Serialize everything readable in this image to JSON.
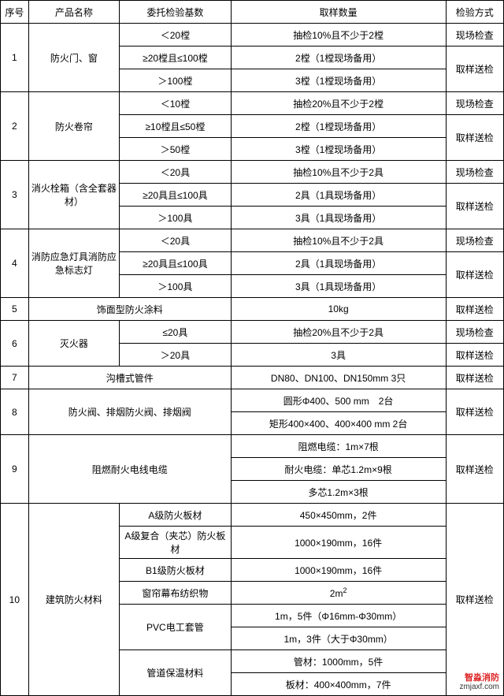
{
  "header": {
    "seq": "序号",
    "name": "产品名称",
    "base": "委托检验基数",
    "qty": "取样数量",
    "method": "检验方式"
  },
  "rows": {
    "r1": {
      "seq": "1",
      "name": "防火门、窗",
      "b1": "＜20樘",
      "q1": "抽检10%且不少于2樘",
      "m1": "现场检查",
      "b2": "≥20樘且≤100樘",
      "q2": "2樘（1樘现场备用）",
      "m23": "取样送检",
      "b3": "＞100樘",
      "q3": "3樘（1樘现场备用）"
    },
    "r2": {
      "seq": "2",
      "name": "防火卷帘",
      "b1": "＜10樘",
      "q1": "抽检20%且不少于2樘",
      "m1": "现场检查",
      "b2": "≥10樘且≤50樘",
      "q2": "2樘（1樘现场备用）",
      "m23": "取样送检",
      "b3": "＞50樘",
      "q3": "3樘（1樘现场备用）"
    },
    "r3": {
      "seq": "3",
      "name": "消火栓箱（含全套器材）",
      "b1": "＜20具",
      "q1": "抽检10%且不少于2具",
      "m1": "现场检查",
      "b2": "≥20具且≤100具",
      "q2": "2具（1具现场备用）",
      "m23": "取样送检",
      "b3": "＞100具",
      "q3": "3具（1具现场备用）"
    },
    "r4": {
      "seq": "4",
      "name": "消防应急灯具消防应急标志灯",
      "b1": "＜20具",
      "q1": "抽检10%且不少于2具",
      "m1": "现场检查",
      "b2": "≥20具且≤100具",
      "q2": "2具（1具现场备用）",
      "m23": "取样送检",
      "b3": "＞100具",
      "q3": "3具（1具现场备用）"
    },
    "r5": {
      "seq": "5",
      "name": "饰面型防火涂料",
      "qty": "10kg",
      "m": "取样送检"
    },
    "r6": {
      "seq": "6",
      "name": "灭火器",
      "b1": "≤20具",
      "q1": "抽检20%且不少于2具",
      "m1": "现场检查",
      "b2": "＞20具",
      "q2": "3具",
      "m2": "取样送检"
    },
    "r7": {
      "seq": "7",
      "name": "沟槽式管件",
      "qty": "DN80、DN100、DN150mm 3只",
      "m": "取样送检"
    },
    "r8": {
      "seq": "8",
      "name": "防火阀、排烟防火阀、排烟阀",
      "q1": "圆形Φ400、500 mm　2台",
      "q2": "矩形400×400、400×400 mm 2台",
      "m": "取样送检"
    },
    "r9": {
      "seq": "9",
      "name": "阻燃耐火电线电缆",
      "q1": "阻燃电缆：1m×7根",
      "q2": "耐火电缆：单芯1.2m×9根",
      "q3": "多芯1.2m×3根",
      "m": "取样送检"
    },
    "r10": {
      "seq": "10",
      "name": "建筑防火材料",
      "b1": "A级防火板材",
      "q1": "450×450mm，2件",
      "b2": "A级复合（夹芯）防火板材",
      "q2": "1000×190mm，16件",
      "b3": "B1级防火板材",
      "q3": "1000×190mm，16件",
      "b4": "窗帘幕布纺织物",
      "q4_pre": "2m",
      "q4_sup": "2",
      "b5": "PVC电工套管",
      "q5a": "1m，5件（Φ16mm-Φ30mm）",
      "q5b": "1m，3件（大于Φ30mm）",
      "b6": "管道保温材料",
      "q6a": "管材：1000mm，5件",
      "q6b": "板材：400×400mm，7件",
      "m": "取样送检"
    }
  },
  "watermark": {
    "brand": "智淼消防",
    "url": "zmjaxf.com"
  }
}
